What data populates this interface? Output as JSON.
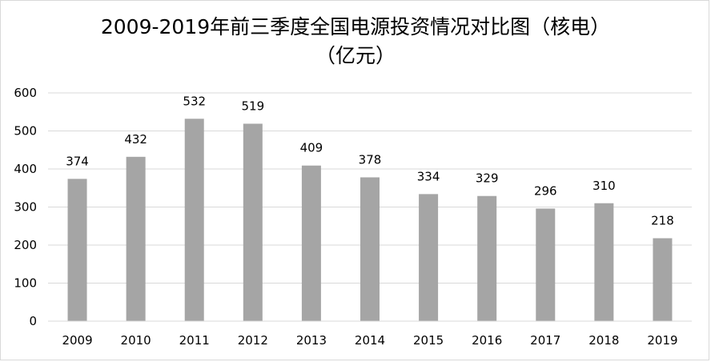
{
  "chart_data": {
    "type": "bar",
    "title": "2009-2019年前三季度全国电源投资情况对比图（核电）",
    "subtitle": "（亿元）",
    "categories": [
      "2009",
      "2010",
      "2011",
      "2012",
      "2013",
      "2014",
      "2015",
      "2016",
      "2017",
      "2018",
      "2019"
    ],
    "values": [
      374,
      432,
      532,
      519,
      409,
      378,
      334,
      329,
      296,
      310,
      218
    ],
    "xlabel": "",
    "ylabel": "",
    "ylim": [
      0,
      600
    ],
    "yticks": [
      0,
      100,
      200,
      300,
      400,
      500,
      600
    ],
    "grid": true,
    "legend": "none",
    "colors": {
      "bar": "#a5a5a5",
      "grid": "#d9d9d9",
      "axis": "#d9d9d9"
    }
  }
}
